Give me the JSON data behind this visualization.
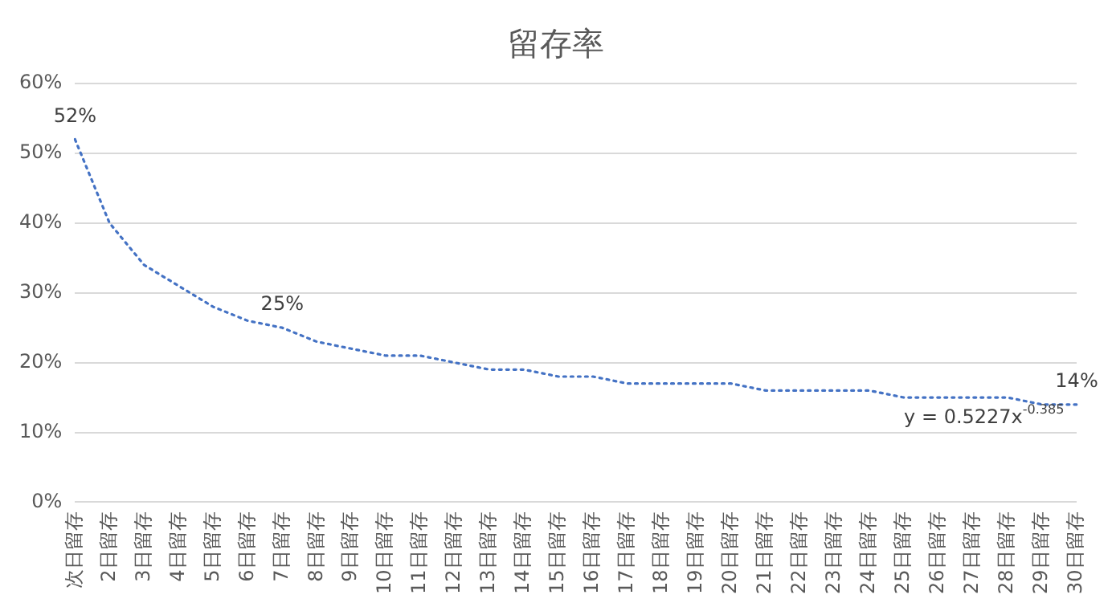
{
  "chart_data": {
    "type": "line",
    "title": "留存率",
    "categories": [
      "次日留存",
      "2日留存",
      "3日留存",
      "4日留存",
      "5日留存",
      "6日留存",
      "7日留存",
      "8日留存",
      "9日留存",
      "10日留存",
      "11日留存",
      "12日留存",
      "13日留存",
      "14日留存",
      "15日留存",
      "16日留存",
      "17日留存",
      "18日留存",
      "19日留存",
      "20日留存",
      "21日留存",
      "22日留存",
      "23日留存",
      "24日留存",
      "25日留存",
      "26日留存",
      "27日留存",
      "28日留存",
      "29日留存",
      "30日留存"
    ],
    "series": [
      {
        "color": "#4472c4",
        "values": [
          52,
          40,
          34,
          31,
          28,
          26,
          25,
          23,
          22,
          21,
          21,
          20,
          19,
          19,
          18,
          18,
          17,
          17,
          17,
          17,
          16,
          16,
          16,
          16,
          15,
          15,
          15,
          15,
          14,
          14
        ],
        "value_labels": [
          "52%",
          null,
          null,
          null,
          null,
          null,
          "25%",
          null,
          null,
          null,
          null,
          null,
          null,
          null,
          null,
          null,
          null,
          null,
          null,
          null,
          null,
          null,
          null,
          null,
          null,
          null,
          null,
          null,
          null,
          "14%"
        ]
      }
    ],
    "ylim": [
      0,
      60
    ],
    "yticks": [
      {
        "value": 0,
        "label": "0%"
      },
      {
        "value": 10,
        "label": "10%"
      },
      {
        "value": 20,
        "label": "20%"
      },
      {
        "value": 30,
        "label": "30%"
      },
      {
        "value": 40,
        "label": "40%"
      },
      {
        "value": 50,
        "label": "50%"
      },
      {
        "value": 60,
        "label": "60%"
      }
    ],
    "grid": "y",
    "legend": false,
    "marker": "none",
    "line_style": "dotted",
    "annotations": [
      {
        "text": "y = 0.5227x$^{-0.385}$",
        "x": "25日留存",
        "y": 15
      }
    ]
  }
}
